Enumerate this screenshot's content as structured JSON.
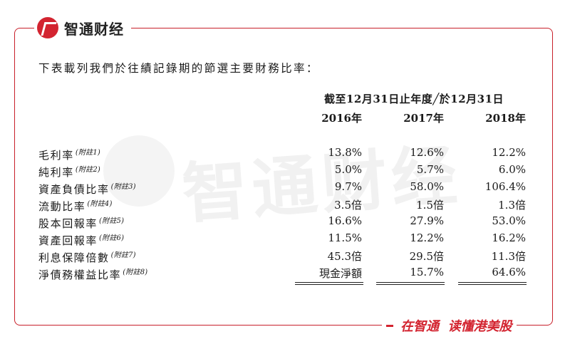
{
  "brand": {
    "name": "智通财经"
  },
  "watermark": {
    "text": "智通财经"
  },
  "intro": "下表載列我們於往績記錄期的節選主要財務比率：",
  "table": {
    "header_span": "截至12月31日止年度╱於12月31日",
    "years": [
      "2016年",
      "2017年",
      "2018年"
    ],
    "rows": [
      {
        "label": "毛利率",
        "note": "(附註1)",
        "values": [
          "13.8%",
          "12.6%",
          "12.2%"
        ]
      },
      {
        "label": "純利率",
        "note": "(附註2)",
        "values": [
          "5.0%",
          "5.7%",
          "6.0%"
        ]
      },
      {
        "label": "資產負債比率",
        "note": "(附註3)",
        "values": [
          "9.7%",
          "58.0%",
          "106.4%"
        ]
      },
      {
        "label": "流動比率",
        "note": "(附註4)",
        "values": [
          "3.5倍",
          "1.5倍",
          "1.3倍"
        ]
      },
      {
        "label": "股本回報率",
        "note": "(附註5)",
        "values": [
          "16.6%",
          "27.9%",
          "53.0%"
        ]
      },
      {
        "label": "資產回報率",
        "note": "(附註6)",
        "values": [
          "11.5%",
          "12.2%",
          "16.2%"
        ]
      },
      {
        "label": "利息保障倍數",
        "note": "(附註7)",
        "values": [
          "45.3倍",
          "29.5倍",
          "11.3倍"
        ]
      },
      {
        "label": "淨債務權益比率",
        "note": "(附註8)",
        "values": [
          "現金淨額",
          "15.7%",
          "64.6%"
        ]
      }
    ]
  },
  "footer": {
    "slogan": "在智通  读懂港美股"
  }
}
